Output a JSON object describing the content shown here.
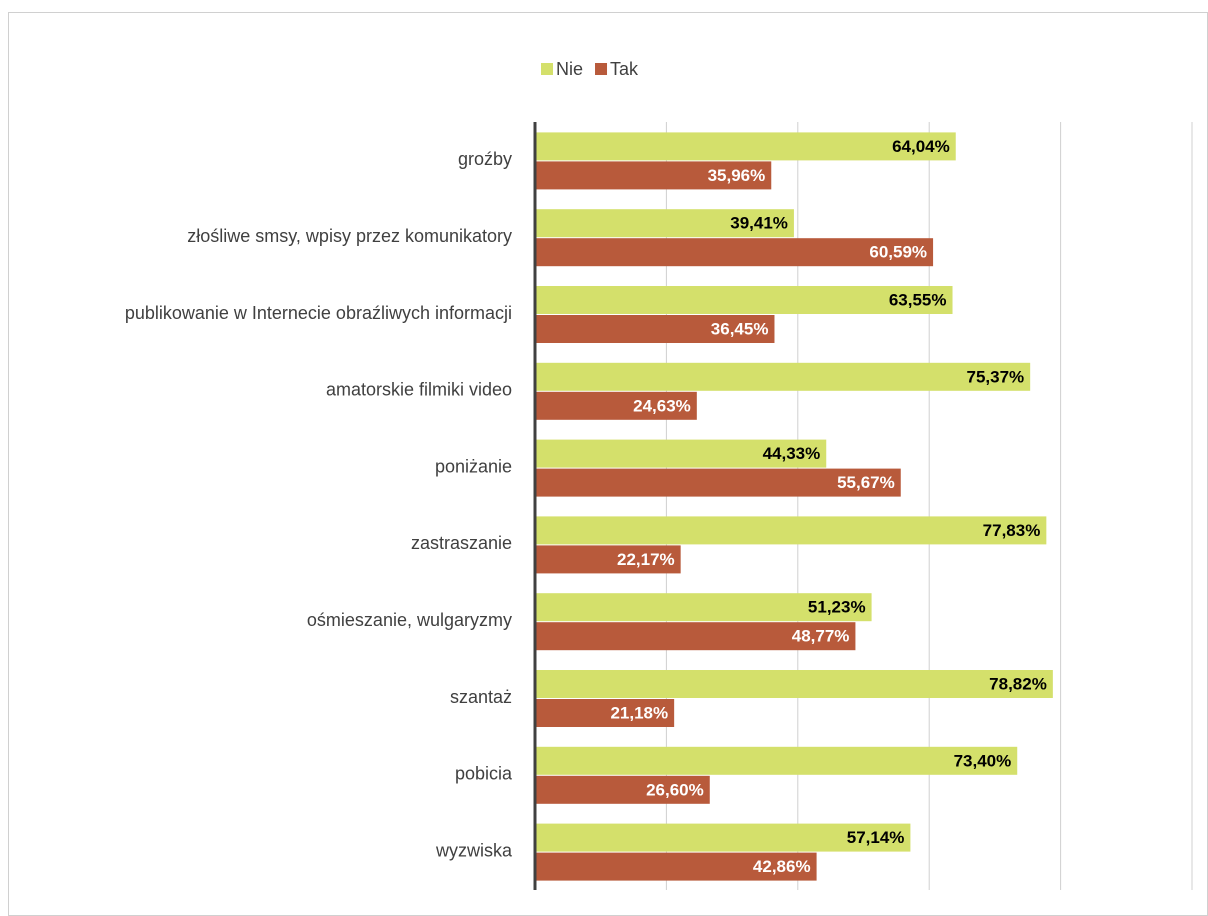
{
  "chart_data": {
    "type": "barh",
    "categories": [
      "groźby",
      "złośliwe smsy, wpisy przez komunikatory",
      "publikowanie w Internecie obraźliwych informacji",
      "amatorskie filmiki video",
      "poniżanie",
      "zastraszanie",
      "ośmieszanie, wulgaryzmy",
      "szantaż",
      "pobicia",
      "wyzwiska"
    ],
    "series": [
      {
        "name": "Nie",
        "color": "#d4e06b",
        "label_color": "#000000",
        "values": [
          64.04,
          39.41,
          63.55,
          75.37,
          44.33,
          77.83,
          51.23,
          78.82,
          73.4,
          57.14
        ],
        "value_labels": [
          "64,04%",
          "39,41%",
          "63,55%",
          "75,37%",
          "44,33%",
          "77,83%",
          "51,23%",
          "78,82%",
          "73,40%",
          "57,14%"
        ]
      },
      {
        "name": "Tak",
        "color": "#b85a3b",
        "label_color": "#ffffff",
        "values": [
          35.96,
          60.59,
          36.45,
          24.63,
          55.67,
          22.17,
          48.77,
          21.18,
          26.6,
          42.86
        ],
        "value_labels": [
          "35,96%",
          "60,59%",
          "36,45%",
          "24,63%",
          "55,67%",
          "22,17%",
          "48,77%",
          "21,18%",
          "26,60%",
          "42,86%"
        ]
      }
    ],
    "xlim": [
      0,
      100
    ],
    "xticks": [
      0,
      20,
      40,
      60,
      80,
      100
    ],
    "grid": true,
    "legend": "top"
  }
}
